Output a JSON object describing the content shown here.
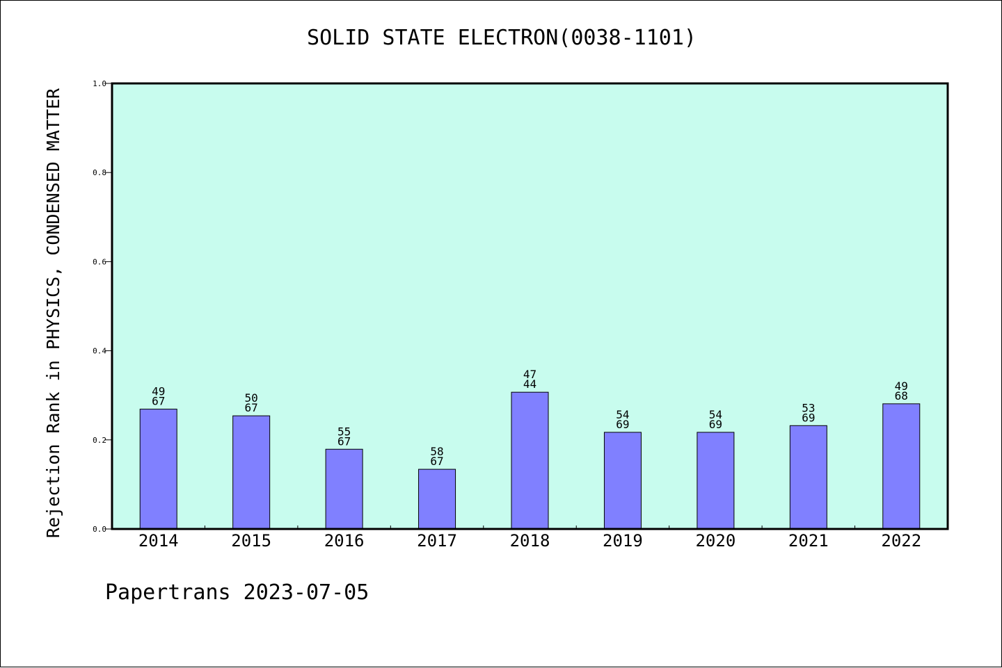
{
  "chart_data": {
    "type": "bar",
    "title": "SOLID STATE ELECTRON(0038-1101)",
    "ylabel": "Rejection Rank in PHYSICS, CONDENSED MATTER",
    "xlabel": "",
    "categories": [
      "2014",
      "2015",
      "2016",
      "2017",
      "2018",
      "2019",
      "2020",
      "2021",
      "2022"
    ],
    "values": [
      0.269,
      0.254,
      0.179,
      0.134,
      0.307,
      0.217,
      0.217,
      0.232,
      0.281
    ],
    "label_top": [
      "49",
      "50",
      "55",
      "58",
      "47",
      "54",
      "54",
      "53",
      "49"
    ],
    "label_bottom": [
      "67",
      "67",
      "67",
      "67",
      "44",
      "69",
      "69",
      "69",
      "68"
    ],
    "ylim": [
      0,
      1.0
    ],
    "yticks": [
      "0.0",
      "0.2",
      "0.4",
      "0.6",
      "0.8",
      "1.0"
    ],
    "grid": false,
    "colors": {
      "plot_background": "#c8fcee",
      "bar_fill": "#8080ff",
      "bar_stroke": "#000000",
      "axis": "#000000"
    }
  },
  "footer": {
    "text": "Papertrans 2023-07-05"
  }
}
